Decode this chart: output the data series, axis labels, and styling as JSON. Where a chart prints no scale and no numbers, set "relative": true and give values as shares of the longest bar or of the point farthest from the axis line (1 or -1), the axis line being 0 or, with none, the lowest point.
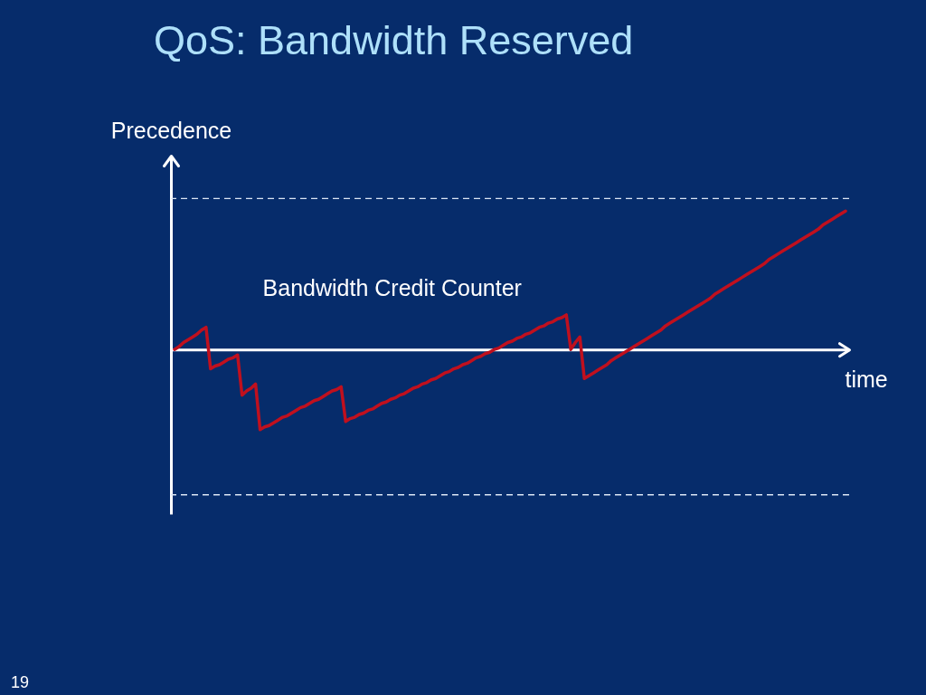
{
  "chart_data": {
    "type": "line",
    "title": "QoS: Bandwidth Reserved",
    "xlabel": "time",
    "ylabel": "Precedence",
    "relative": true,
    "categories": [
      null,
      null,
      null,
      null,
      null,
      null,
      null,
      null,
      null,
      null,
      null,
      null,
      null,
      null,
      null,
      null,
      null,
      null,
      null,
      null,
      null,
      null,
      null,
      null,
      null,
      null,
      null,
      null,
      null,
      null,
      null,
      null,
      null,
      null,
      null,
      null,
      null,
      null,
      null,
      null,
      null,
      null,
      null,
      null,
      null,
      null,
      null,
      null,
      null,
      null,
      null,
      null,
      null,
      null,
      null,
      null,
      null,
      null,
      null,
      null,
      null,
      null,
      null,
      null,
      null,
      null,
      null,
      null,
      null,
      null,
      null,
      null,
      null,
      null,
      null,
      null,
      null,
      null,
      null,
      null,
      null,
      null,
      null,
      null,
      null,
      null,
      null,
      null,
      null,
      null,
      null,
      null,
      null,
      null,
      null,
      null,
      null,
      null,
      null,
      null,
      null,
      null,
      null,
      null,
      null,
      null,
      null,
      null,
      null,
      null,
      null,
      null,
      null,
      null,
      null,
      null,
      null,
      null,
      null,
      null,
      null,
      null,
      null,
      null,
      null,
      null,
      null,
      null,
      null,
      null,
      null,
      null,
      null,
      null,
      null,
      null,
      null,
      null,
      null,
      null,
      null,
      null,
      null,
      null,
      null,
      null,
      null,
      null,
      null,
      null
    ],
    "series": [
      {
        "name": "Bandwidth Credit Counter",
        "color": "#c0101e",
        "values": [
          0,
          0.02,
          0.05,
          0.07,
          0.09,
          0.11,
          0.14,
          0.16,
          -0.14,
          -0.12,
          -0.11,
          -0.09,
          -0.07,
          -0.06,
          -0.04,
          -0.33,
          -0.3,
          -0.28,
          -0.25,
          -0.58,
          -0.56,
          -0.55,
          -0.53,
          -0.51,
          -0.49,
          -0.48,
          -0.46,
          -0.44,
          -0.42,
          -0.41,
          -0.39,
          -0.37,
          -0.36,
          -0.34,
          -0.32,
          -0.3,
          -0.29,
          -0.27,
          -0.52,
          -0.5,
          -0.49,
          -0.47,
          -0.46,
          -0.44,
          -0.43,
          -0.41,
          -0.39,
          -0.38,
          -0.36,
          -0.35,
          -0.33,
          -0.32,
          -0.3,
          -0.28,
          -0.27,
          -0.25,
          -0.24,
          -0.22,
          -0.21,
          -0.19,
          -0.17,
          -0.16,
          -0.14,
          -0.13,
          -0.11,
          -0.1,
          -0.08,
          -0.06,
          -0.05,
          -0.03,
          -0.02,
          0,
          0.01,
          0.03,
          0.05,
          0.06,
          0.08,
          0.09,
          0.11,
          0.12,
          0.14,
          0.16,
          0.17,
          0.19,
          0.2,
          0.22,
          0.23,
          0.25,
          0,
          0.05,
          0.09,
          -0.21,
          -0.19,
          -0.17,
          -0.15,
          -0.13,
          -0.11,
          -0.08,
          -0.06,
          -0.04,
          -0.02,
          0,
          0.02,
          0.04,
          0.06,
          0.08,
          0.1,
          0.12,
          0.14,
          0.17,
          0.19,
          0.21,
          0.23,
          0.25,
          0.27,
          0.29,
          0.31,
          0.33,
          0.35,
          0.37,
          0.4,
          0.42,
          0.44,
          0.46,
          0.48,
          0.5,
          0.52,
          0.54,
          0.56,
          0.58,
          0.6,
          0.62,
          0.65,
          0.67,
          0.69,
          0.71,
          0.73,
          0.75,
          0.77,
          0.79,
          0.81,
          0.83,
          0.85,
          0.87,
          0.9,
          0.92,
          0.94,
          0.96,
          0.98,
          1
        ]
      }
    ],
    "ref_lines": [
      {
        "axis": "y",
        "value": 1.09,
        "color": "#dce6f5",
        "line_style": "dashed"
      },
      {
        "axis": "y",
        "value": -1.05,
        "color": "#dce6f5",
        "line_style": "dashed"
      }
    ],
    "annotations": [
      "19"
    ]
  }
}
